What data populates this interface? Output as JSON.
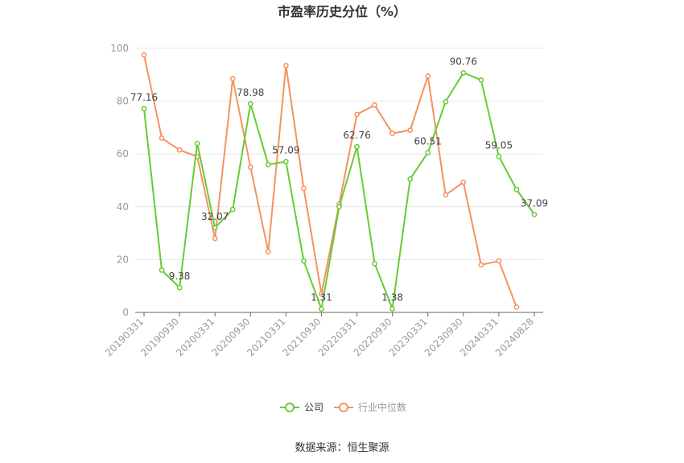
{
  "chart_data": {
    "type": "line",
    "title": "市盈率历史分位（%）",
    "source": "数据来源：恒生聚源",
    "ylim": [
      0,
      100
    ],
    "yticks": [
      0,
      20,
      40,
      60,
      80,
      100
    ],
    "x_tick_labels": [
      "20190331",
      "20190930",
      "20200331",
      "20200930",
      "20210331",
      "20210930",
      "20220331",
      "20220930",
      "20230331",
      "20230930",
      "20240331",
      "20240828"
    ],
    "grid": true,
    "legend_position": "bottom",
    "series": [
      {
        "name": "公司",
        "color": "#66cc33",
        "values": [
          77.16,
          16,
          9.38,
          64,
          32.07,
          39,
          78.98,
          56,
          57.09,
          19.5,
          1.31,
          40,
          62.76,
          18.5,
          1.38,
          50.5,
          60.51,
          79.8,
          90.76,
          88,
          59.05,
          46.5,
          37.09
        ],
        "labels": [
          "77.16",
          null,
          "9.38",
          null,
          "32.07",
          null,
          "78.98",
          null,
          "57.09",
          null,
          "1.31",
          null,
          "62.76",
          null,
          "1.38",
          null,
          "60.51",
          null,
          "90.76",
          null,
          "59.05",
          null,
          "37.09"
        ]
      },
      {
        "name": "行业中位数",
        "color": "#f5925e",
        "values": [
          97.5,
          66,
          61.5,
          59,
          28,
          88.5,
          55,
          23,
          93.5,
          47,
          7,
          41,
          75,
          78.5,
          67.8,
          69,
          89.5,
          44.5,
          49.3,
          18,
          19.5,
          2,
          null
        ]
      }
    ]
  }
}
